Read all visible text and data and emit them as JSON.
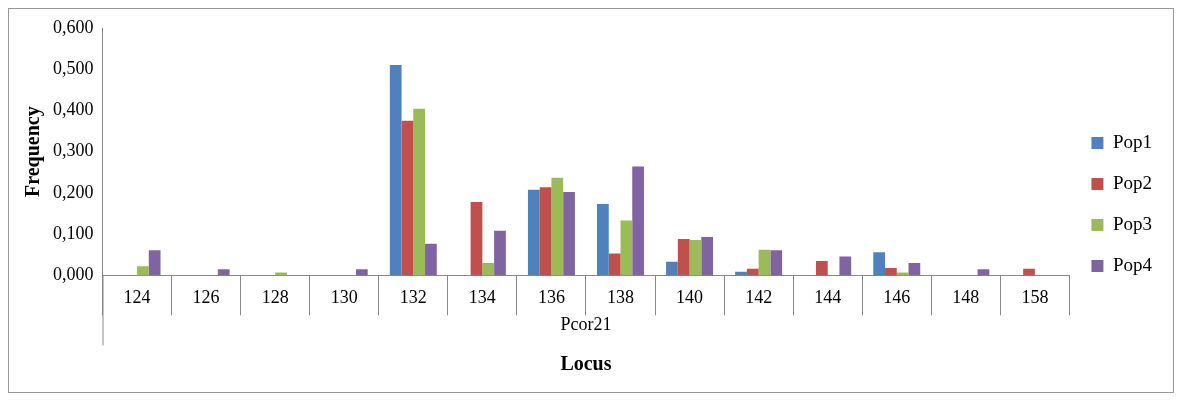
{
  "chart_data": {
    "type": "bar",
    "xlabel": "Locus",
    "ylabel": "Frequency",
    "annotations": [
      "Pcor21"
    ],
    "categories": [
      "124",
      "126",
      "128",
      "130",
      "132",
      "134",
      "136",
      "138",
      "140",
      "142",
      "144",
      "146",
      "148",
      "158"
    ],
    "series": [
      {
        "name": "Pop1",
        "color": "#4f81bd",
        "values": [
          0,
          0,
          0,
          0,
          0.51,
          0,
          0.208,
          0.173,
          0.033,
          0.009,
          0,
          0.056,
          0,
          0
        ]
      },
      {
        "name": "Pop2",
        "color": "#c0504d",
        "values": [
          0,
          0,
          0,
          0,
          0.375,
          0.178,
          0.214,
          0.053,
          0.088,
          0.016,
          0.035,
          0.018,
          0,
          0.016
        ]
      },
      {
        "name": "Pop3",
        "color": "#9bbb59",
        "values": [
          0.022,
          0,
          0.007,
          0,
          0.404,
          0.03,
          0.237,
          0.133,
          0.086,
          0.062,
          0,
          0.007,
          0,
          0
        ]
      },
      {
        "name": "Pop4",
        "color": "#8064a2",
        "values": [
          0.061,
          0.015,
          0,
          0.015,
          0.077,
          0.108,
          0.202,
          0.264,
          0.093,
          0.061,
          0.046,
          0.03,
          0.015,
          0
        ]
      }
    ],
    "ylim": [
      0,
      0.6
    ],
    "yticks": [
      {
        "value": 0,
        "label": "0,000"
      },
      {
        "value": 0.1,
        "label": "0,100"
      },
      {
        "value": 0.2,
        "label": "0,200"
      },
      {
        "value": 0.3,
        "label": "0,300"
      },
      {
        "value": 0.4,
        "label": "0,400"
      },
      {
        "value": 0.5,
        "label": "0,500"
      },
      {
        "value": 0.6,
        "label": "0,600"
      }
    ],
    "grid": false,
    "legend": "right"
  }
}
